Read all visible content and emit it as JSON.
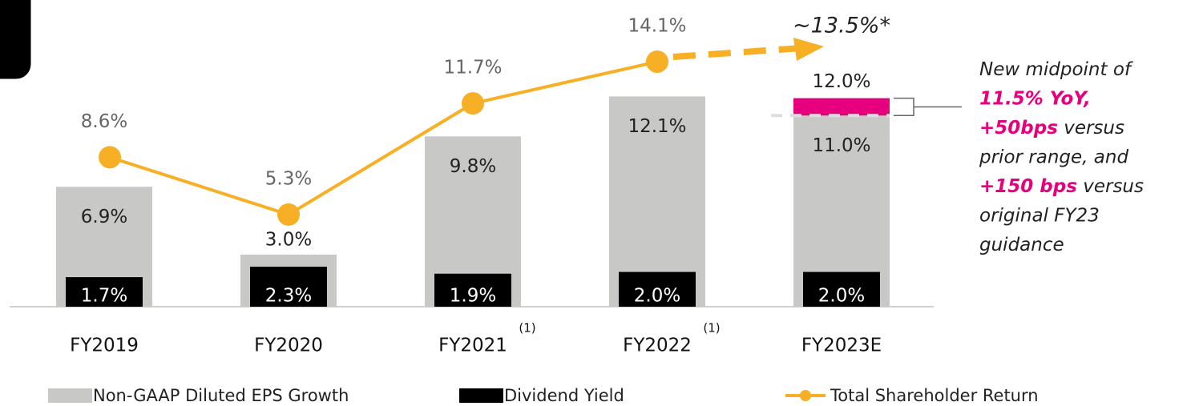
{
  "chart_data": {
    "type": "bar",
    "categories": [
      "FY2019",
      "FY2020",
      "FY2021",
      "FY2022",
      "FY2023E"
    ],
    "category_footnotes": [
      null,
      null,
      "(1)",
      "(1)",
      null
    ],
    "series": [
      {
        "name": "Non-GAAP Diluted EPS Growth",
        "color": "#c8c8c6",
        "values": [
          6.9,
          3.0,
          9.8,
          12.1,
          11.0
        ],
        "value_labels": [
          "6.9%",
          "3.0%",
          "9.8%",
          "12.1%",
          "11.0%"
        ]
      },
      {
        "name": "Dividend Yield",
        "color": "#000000",
        "values": [
          1.7,
          2.3,
          1.9,
          2.0,
          2.0
        ],
        "value_labels": [
          "1.7%",
          "2.3%",
          "1.9%",
          "2.0%",
          "2.0%"
        ]
      },
      {
        "name": "Total Shareholder Return",
        "type": "line",
        "color": "#f7b025",
        "values": [
          8.6,
          5.3,
          11.7,
          14.1,
          null
        ],
        "value_labels": [
          "8.6%",
          "5.3%",
          "11.7%",
          "14.1%",
          null
        ]
      }
    ],
    "range_high": 12.0,
    "range_high_label": "12.0%",
    "range_color": "#e6007e",
    "estimate_label": "~13.5%*",
    "annotation": [
      [
        {
          "text": "New midpoint of",
          "highlight": false
        }
      ],
      [
        {
          "text": "11.5% YoY,",
          "highlight": true
        }
      ],
      [
        {
          "text": "+50bps",
          "highlight": true
        },
        {
          "text": " versus",
          "highlight": false
        }
      ],
      [
        {
          "text": "prior range, and",
          "highlight": false
        }
      ],
      [
        {
          "text": "+150 bps",
          "highlight": true
        },
        {
          "text": " versus",
          "highlight": false
        }
      ],
      [
        {
          "text": "original FY23",
          "highlight": false
        }
      ],
      [
        {
          "text": "guidance",
          "highlight": false
        }
      ]
    ]
  }
}
